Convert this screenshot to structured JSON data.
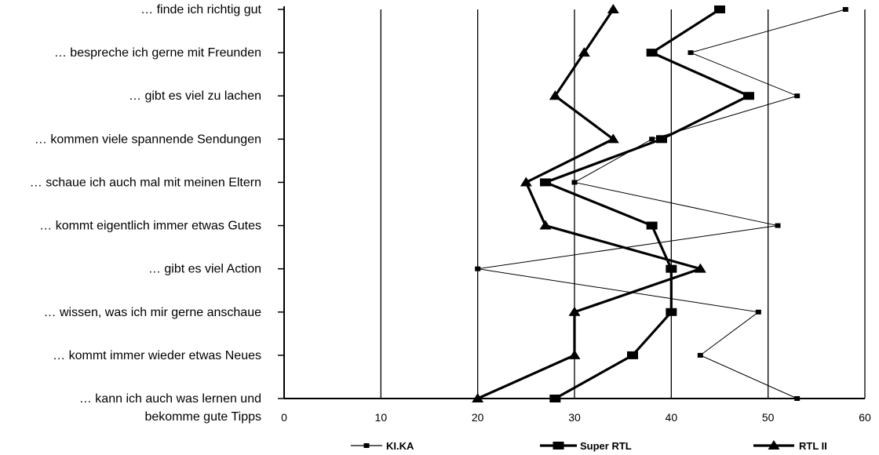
{
  "chart_data": {
    "type": "line",
    "orientation": "horizontal-values",
    "categories": [
      "… finde ich richtig gut",
      "… bespreche ich gerne mit Freunden",
      "… gibt es viel zu lachen",
      "… kommen viele spannende Sendungen",
      "… schaue ich auch mal mit meinen Eltern",
      "… kommt eigentlich immer etwas Gutes",
      "… gibt es viel Action",
      "… wissen, was ich mir gerne anschaue",
      "…  kommt immer wieder etwas Neues",
      "…  kann ich auch was lernen und|bekomme gute Tipps"
    ],
    "series": [
      {
        "name": "KI.KA",
        "marker": "small-square",
        "line": "thin",
        "values": [
          58,
          42,
          53,
          38,
          30,
          51,
          20,
          49,
          43,
          53
        ]
      },
      {
        "name": "Super RTL",
        "marker": "square",
        "line": "thick",
        "values": [
          45,
          38,
          48,
          39,
          27,
          38,
          40,
          40,
          36,
          28
        ]
      },
      {
        "name": "RTL II",
        "marker": "triangle",
        "line": "thick",
        "values": [
          34,
          31,
          28,
          34,
          25,
          27,
          43,
          30,
          30,
          20
        ]
      }
    ],
    "x_ticks": [
      "0",
      "10",
      "20",
      "30",
      "40",
      "50",
      "60"
    ],
    "xlim": [
      0,
      60
    ],
    "grid": "vertical",
    "legend": "bottom",
    "title": "",
    "xlabel": "",
    "ylabel": ""
  }
}
